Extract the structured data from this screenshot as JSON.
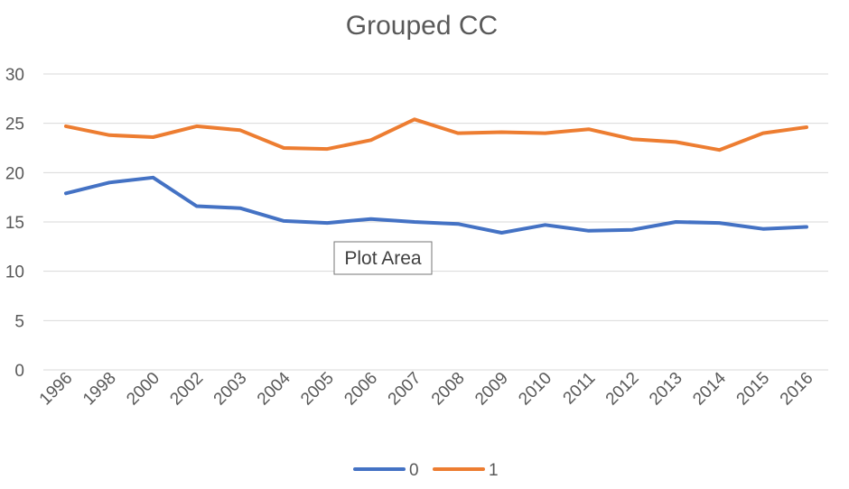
{
  "chart_data": {
    "type": "line",
    "title": "Grouped CC",
    "x": [
      "1996",
      "1998",
      "2000",
      "2002",
      "2003",
      "2004",
      "2005",
      "2006",
      "2007",
      "2008",
      "2009",
      "2010",
      "2011",
      "2012",
      "2013",
      "2014",
      "2015",
      "2016"
    ],
    "series": [
      {
        "name": "0",
        "color": "#4472C4",
        "values": [
          17.9,
          19.0,
          19.5,
          16.6,
          16.4,
          15.1,
          14.9,
          15.3,
          15.0,
          14.8,
          13.9,
          14.7,
          14.1,
          14.2,
          15.0,
          14.9,
          14.3,
          14.5
        ]
      },
      {
        "name": "1",
        "color": "#ED7D31",
        "values": [
          24.7,
          23.8,
          23.6,
          24.7,
          24.3,
          22.5,
          22.4,
          23.3,
          25.4,
          24.0,
          24.1,
          24.0,
          24.4,
          23.4,
          23.1,
          22.3,
          24.0,
          24.6
        ]
      }
    ],
    "ylim": [
      0,
      30
    ],
    "yticks": [
      "0",
      "5",
      "10",
      "15",
      "20",
      "25",
      "30"
    ],
    "grid": true,
    "legend_position": "bottom"
  },
  "tooltip": {
    "label": "Plot Area"
  }
}
